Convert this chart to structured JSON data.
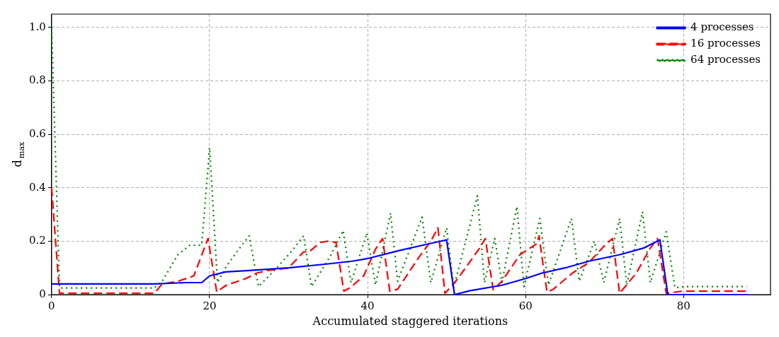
{
  "chart_data": {
    "type": "line",
    "xlabel": "Accumulated staggered iterations",
    "ylabel": "d$_{max}$",
    "xlim": [
      0,
      91
    ],
    "ylim": [
      0,
      1.05
    ],
    "xticks": [
      0,
      20,
      40,
      60,
      80
    ],
    "yticks": [
      0,
      0.2,
      0.4,
      0.6,
      0.8,
      {
        "value": 1,
        "label": "1.0"
      }
    ],
    "grid": true,
    "legend": "top right",
    "marker": "none",
    "series": [
      {
        "name": "4 processes",
        "color": "#0000ff",
        "line_style": "solid",
        "x": [
          0,
          13,
          17,
          19,
          20,
          22,
          25,
          30,
          35,
          38,
          40,
          44,
          47,
          50,
          51,
          53,
          57,
          60,
          62,
          65,
          68,
          72,
          75,
          77,
          78,
          88
        ],
        "values": [
          0.04,
          0.04,
          0.045,
          0.045,
          0.07,
          0.085,
          0.09,
          0.1,
          0.115,
          0.125,
          0.135,
          0.165,
          0.185,
          0.205,
          0,
          0.015,
          0.035,
          0.06,
          0.08,
          0.1,
          0.125,
          0.15,
          0.175,
          0.205,
          0,
          0
        ]
      },
      {
        "name": "16 processes",
        "color": "#ff0000",
        "line_style": "dashed",
        "x": [
          0,
          1,
          13,
          14,
          16,
          18,
          19.8,
          20.9,
          22.1,
          24.6,
          25.9,
          27.3,
          30,
          31.9,
          32.6,
          34,
          35,
          36,
          37,
          37.8,
          39.5,
          41,
          41.9,
          42.8,
          43.8,
          46.5,
          48,
          48.9,
          49.8,
          50.9,
          52.4,
          54.2,
          54.9,
          55.9,
          57,
          59.3,
          61.4,
          61.7,
          62.7,
          63.5,
          65.9,
          68,
          70.2,
          71,
          71.9,
          74,
          75.8,
          76.7,
          77.8,
          79.9,
          88
        ],
        "values": [
          0.4,
          0.005,
          0.005,
          0.04,
          0.05,
          0.07,
          0.21,
          0.01,
          0.035,
          0.06,
          0.08,
          0.09,
          0.1,
          0.16,
          0.16,
          0.195,
          0.2,
          0.195,
          0.013,
          0.026,
          0.07,
          0.17,
          0.21,
          0.013,
          0.02,
          0.14,
          0.2,
          0.25,
          0.005,
          0.04,
          0.1,
          0.175,
          0.21,
          0.018,
          0.05,
          0.15,
          0.19,
          0.22,
          0.01,
          0.02,
          0.08,
          0.12,
          0.19,
          0.21,
          0.005,
          0.08,
          0.175,
          0.21,
          0.005,
          0.013,
          0.013
        ]
      },
      {
        "name": "64 processes",
        "color": "#008000",
        "line_style": "dotted",
        "x": [
          0,
          1,
          13,
          14,
          16,
          17.5,
          19,
          20,
          21,
          22.1,
          23.7,
          25,
          26.2,
          28.5,
          30.6,
          31.9,
          32.9,
          35.2,
          36.9,
          37.9,
          39.9,
          41,
          42.9,
          43.8,
          46.9,
          48,
          50,
          50.9,
          53.9,
          54.8,
          56.1,
          57,
          58.9,
          59.8,
          61.8,
          62.9,
          65.8,
          66.8,
          68.7,
          69.9,
          71.9,
          72.8,
          74.8,
          75.8,
          77.8,
          78.9,
          80.3,
          88
        ],
        "values": [
          1.0,
          0.025,
          0.025,
          0.05,
          0.15,
          0.185,
          0.185,
          0.55,
          0.045,
          0.105,
          0.17,
          0.22,
          0.03,
          0.1,
          0.17,
          0.22,
          0.03,
          0.14,
          0.24,
          0.045,
          0.23,
          0.036,
          0.305,
          0.05,
          0.29,
          0.045,
          0.25,
          0.026,
          0.37,
          0.045,
          0.21,
          0.045,
          0.33,
          0.03,
          0.285,
          0.036,
          0.285,
          0.05,
          0.2,
          0.045,
          0.285,
          0.036,
          0.31,
          0.045,
          0.235,
          0.026,
          0.03,
          0.03
        ]
      }
    ]
  }
}
